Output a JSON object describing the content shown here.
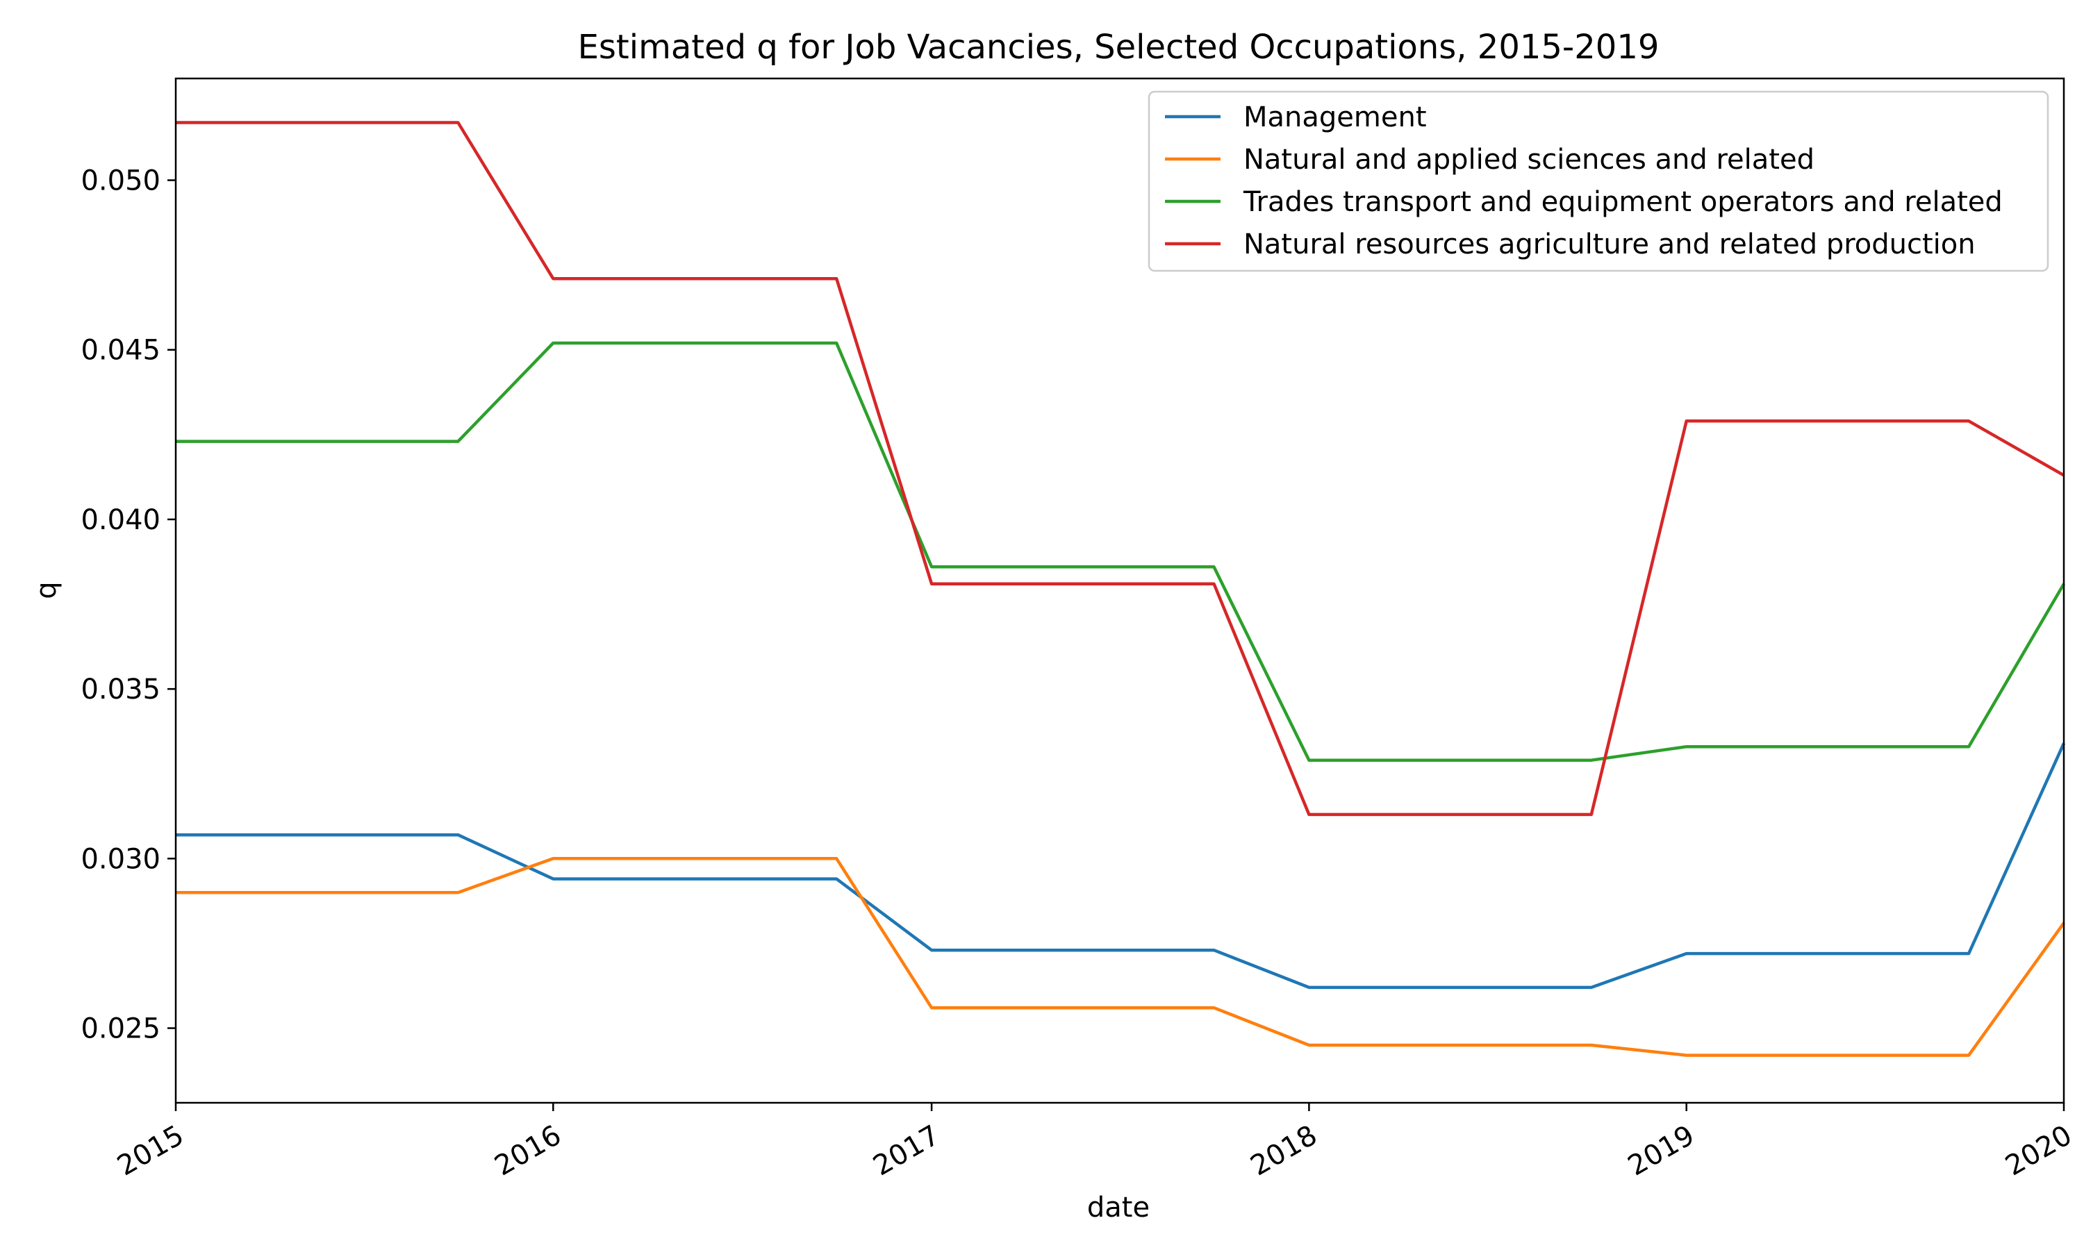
{
  "chart_data": {
    "type": "line",
    "title": "Estimated q for Job Vacancies, Selected Occupations, 2015-2019",
    "xlabel": "date",
    "ylabel": "q",
    "x": [
      "2015-01-01",
      "2015-10-01",
      "2016-01-01",
      "2016-10-01",
      "2017-01-01",
      "2017-10-01",
      "2018-01-01",
      "2018-10-01",
      "2019-01-01",
      "2019-10-01",
      "2020-01-01"
    ],
    "xlim": [
      "2015-01-01",
      "2020-01-01"
    ],
    "xticks": [
      "2015",
      "2016",
      "2017",
      "2018",
      "2019",
      "2020"
    ],
    "xtick_dates": [
      "2015-01-01",
      "2016-01-01",
      "2017-01-01",
      "2018-01-01",
      "2019-01-01",
      "2020-01-01"
    ],
    "ylim": [
      0.0228,
      0.053
    ],
    "yticks": [
      "0.025",
      "0.030",
      "0.035",
      "0.040",
      "0.045",
      "0.050"
    ],
    "ytick_values": [
      0.025,
      0.03,
      0.035,
      0.04,
      0.045,
      0.05
    ],
    "grid": false,
    "legend_position": "top-right",
    "series": [
      {
        "name": "Management",
        "color": "#1f77b4",
        "values": [
          0.0307,
          0.0307,
          0.0294,
          0.0294,
          0.0273,
          0.0273,
          0.0262,
          0.0262,
          0.0272,
          0.0272,
          0.0334
        ]
      },
      {
        "name": "Natural and applied sciences and related",
        "color": "#ff7f0e",
        "values": [
          0.029,
          0.029,
          0.03,
          0.03,
          0.0256,
          0.0256,
          0.0245,
          0.0245,
          0.0242,
          0.0242,
          0.0281
        ]
      },
      {
        "name": "Trades transport and equipment operators and related",
        "color": "#2ca02c",
        "values": [
          0.0423,
          0.0423,
          0.0452,
          0.0452,
          0.0386,
          0.0386,
          0.0329,
          0.0329,
          0.0333,
          0.0333,
          0.0381
        ]
      },
      {
        "name": "Natural resources agriculture and related production",
        "color": "#d62728",
        "values": [
          0.0517,
          0.0517,
          0.0471,
          0.0471,
          0.0381,
          0.0381,
          0.0313,
          0.0313,
          0.0429,
          0.0429,
          0.0413
        ]
      }
    ]
  }
}
